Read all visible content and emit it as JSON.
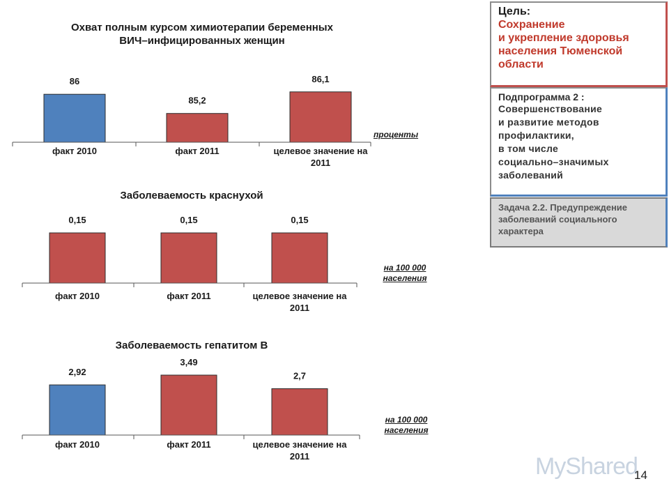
{
  "goal": {
    "label": "Цель:",
    "lines": [
      "Сохранение",
      "и укрепление здоровья",
      "населения Тюменской",
      "области"
    ]
  },
  "subprogram": {
    "label": "Подпрограмма 2 :",
    "lines": [
      "Совершенствование",
      "и развитие методов",
      "профилактики,",
      "в том числе",
      "социально–значимых",
      "заболеваний"
    ]
  },
  "task": {
    "label": "Задача 2.2.",
    "lines": [
      "Предупреждение",
      "заболеваний социального",
      "характера"
    ]
  },
  "units": {
    "percent": "проценты",
    "per100k_line1": "на 100 000",
    "per100k_line2": "населения"
  },
  "watermark": "MyShared",
  "page_number": "14",
  "chart_data": [
    {
      "type": "bar",
      "title_lines": [
        "Охват полным курсом химиотерапии беременных",
        "ВИЧ–инфицированных женщин"
      ],
      "categories": [
        [
          "факт  2010"
        ],
        [
          "факт  2011"
        ],
        [
          "целевое значение на",
          "2011"
        ]
      ],
      "values": [
        86,
        85.2,
        86.1
      ],
      "value_labels": [
        "86",
        "85,2",
        "86,1"
      ],
      "colors": [
        "#4f81bd",
        "#c0504d",
        "#c0504d"
      ],
      "ylabel": "проценты",
      "ylim": [
        84,
        86.5
      ]
    },
    {
      "type": "bar",
      "title_lines": [
        "Заболеваемость краснухой"
      ],
      "categories": [
        [
          "факт 2010"
        ],
        [
          "факт 2011"
        ],
        [
          "целевое значение на",
          "2011"
        ]
      ],
      "values": [
        0.15,
        0.15,
        0.15
      ],
      "value_labels": [
        "0,15",
        "0,15",
        "0,15"
      ],
      "colors": [
        "#c0504d",
        "#c0504d",
        "#c0504d"
      ],
      "ylabel": "на 100 000 населения",
      "ylim": [
        0,
        0.2
      ]
    },
    {
      "type": "bar",
      "title_lines": [
        "Заболеваемость гепатитом В"
      ],
      "categories": [
        [
          "факт  2010"
        ],
        [
          "факт  2011"
        ],
        [
          "целевое значение на",
          "2011"
        ]
      ],
      "values": [
        2.92,
        3.49,
        2.7
      ],
      "value_labels": [
        "2,92",
        "3,49",
        "2,7"
      ],
      "colors": [
        "#4f81bd",
        "#c0504d",
        "#c0504d"
      ],
      "ylabel": "на 100 000 населения",
      "ylim": [
        0,
        4.5
      ]
    }
  ]
}
